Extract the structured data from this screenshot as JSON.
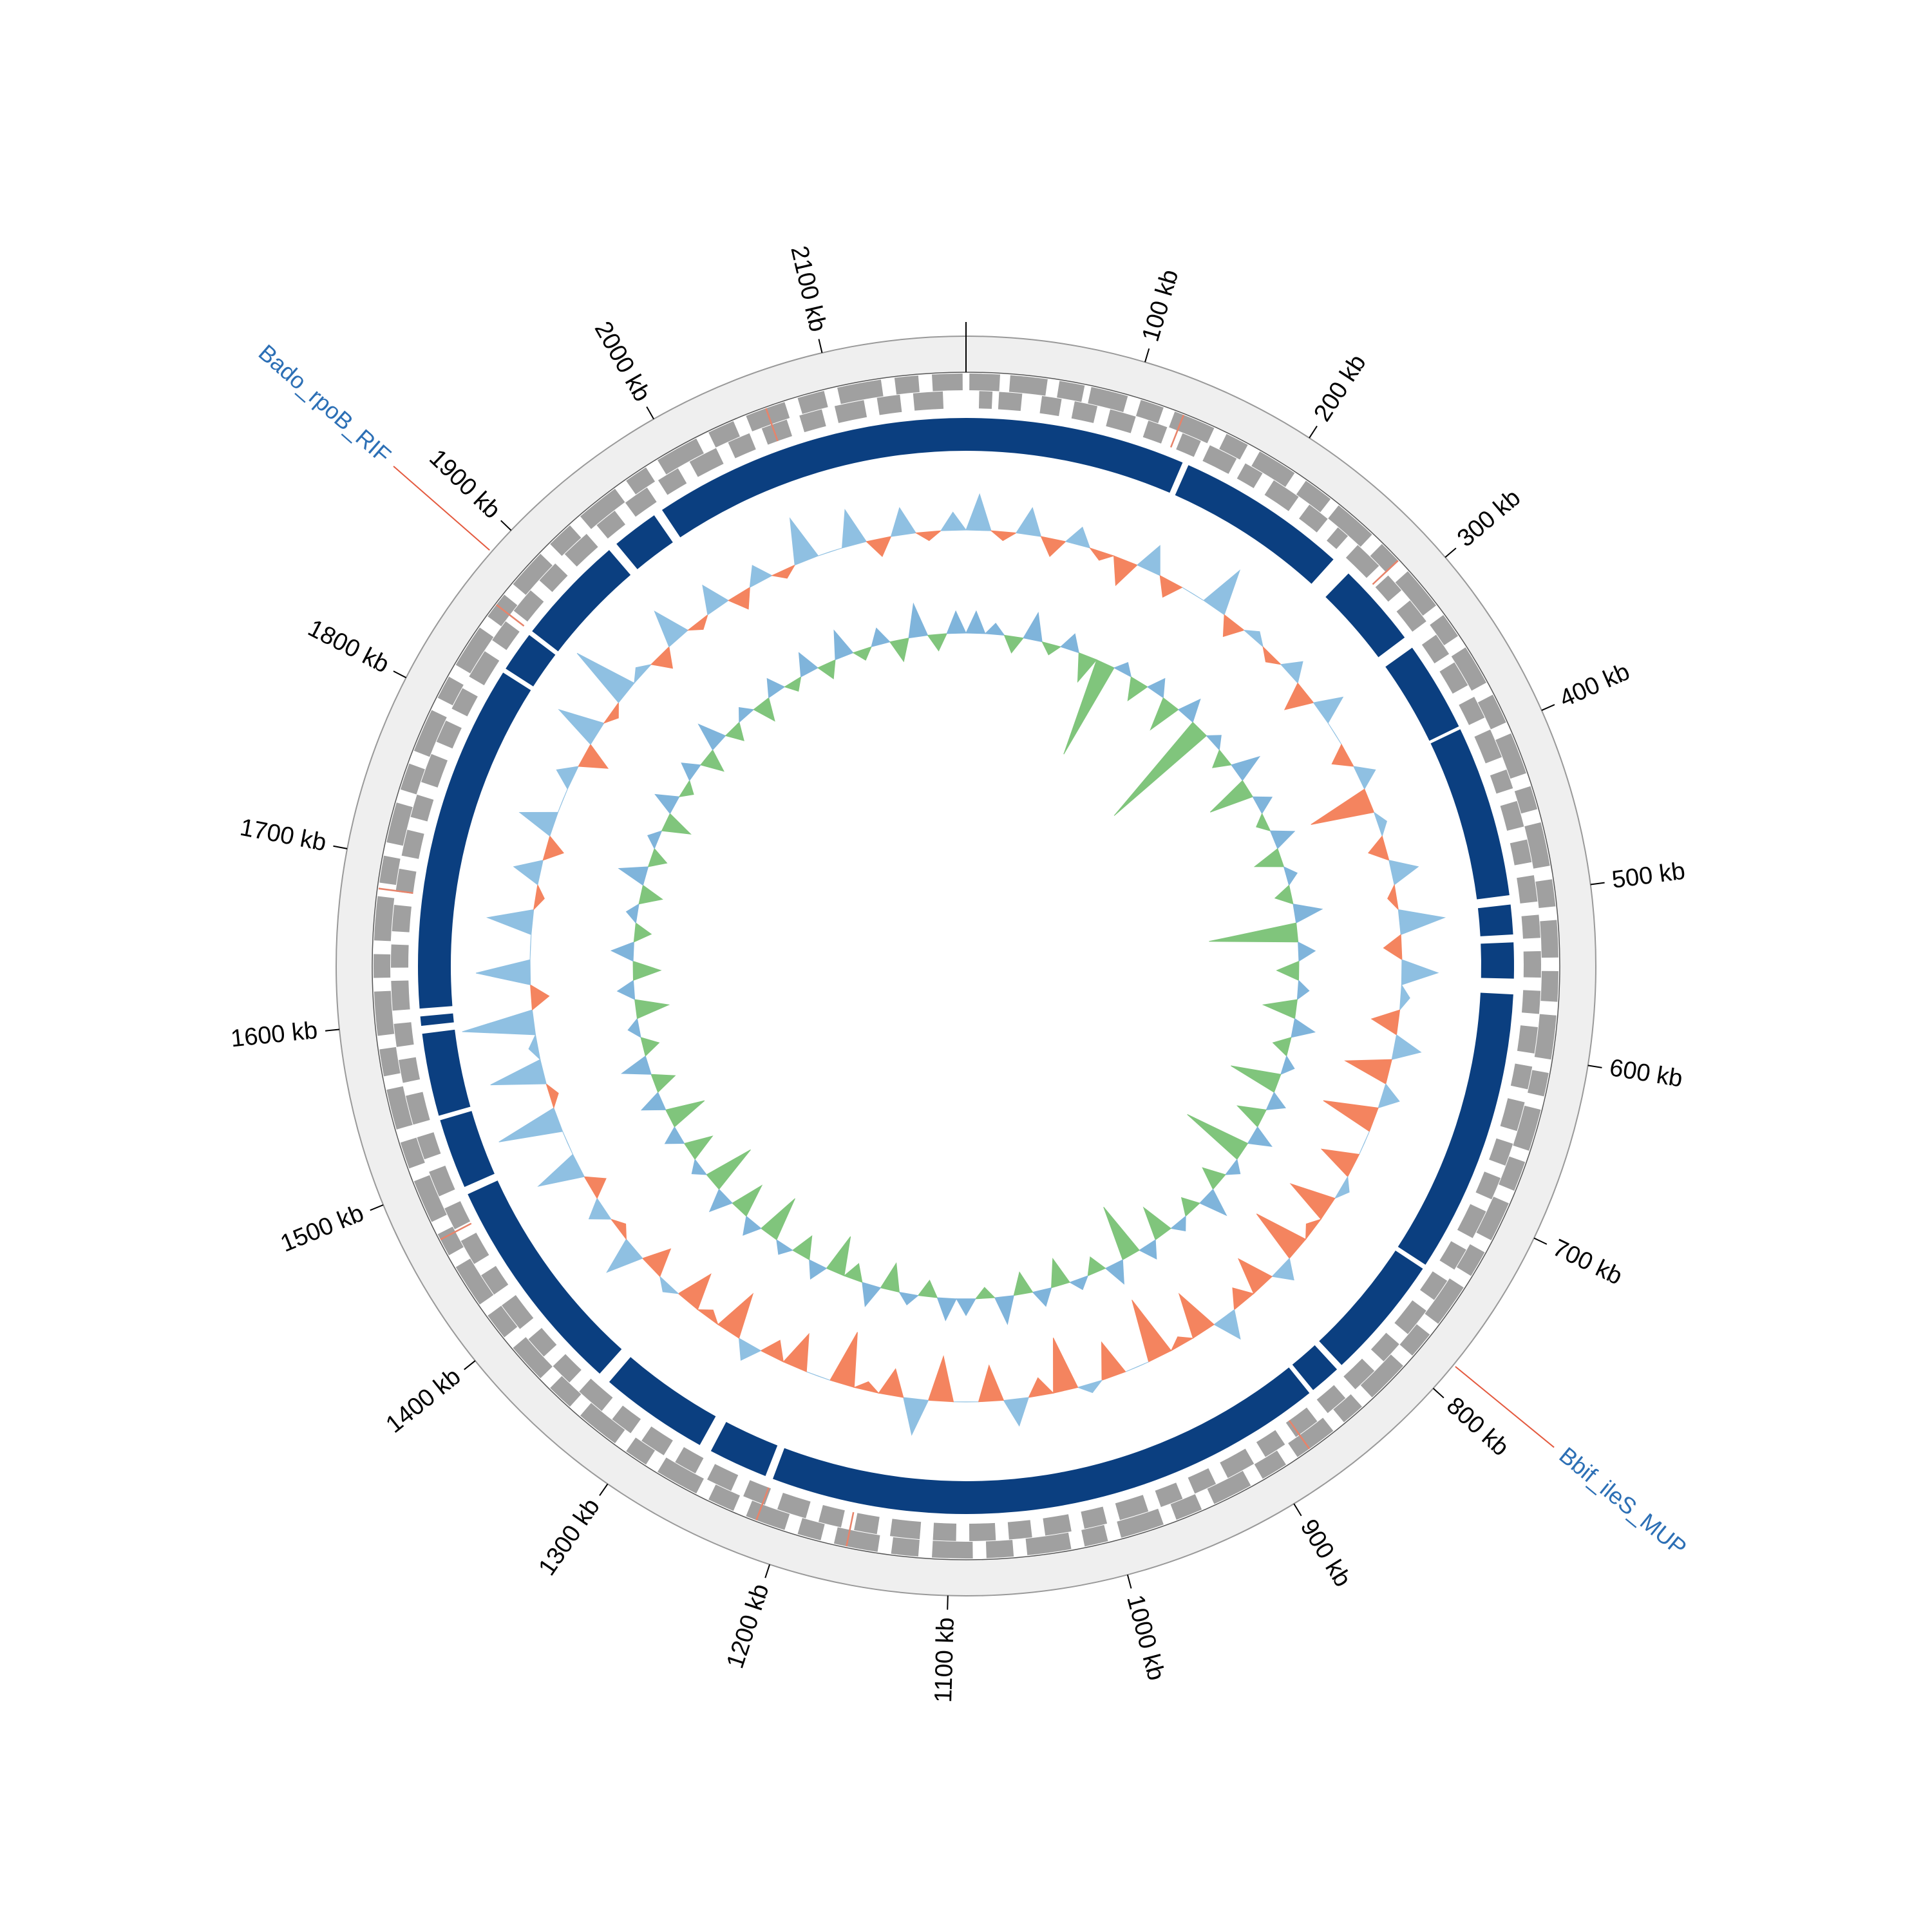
{
  "chart_data": {
    "type": "circular-genome",
    "xlim": [
      0,
      2180
    ],
    "xticks": [
      {
        "value": 0,
        "label": null
      },
      {
        "value": 100,
        "label": "100 kb"
      },
      {
        "value": 200,
        "label": "200 kb"
      },
      {
        "value": 300,
        "label": "300 kb"
      },
      {
        "value": 400,
        "label": "400 kb"
      },
      {
        "value": 500,
        "label": "500 kb"
      },
      {
        "value": 600,
        "label": "600 kb"
      },
      {
        "value": 700,
        "label": "700 kb"
      },
      {
        "value": 800,
        "label": "800 kb"
      },
      {
        "value": 900,
        "label": "900 kb"
      },
      {
        "value": 1000,
        "label": "1000 kb"
      },
      {
        "value": 1100,
        "label": "1100 kb"
      },
      {
        "value": 1200,
        "label": "1200 kb"
      },
      {
        "value": 1300,
        "label": "1300 kb"
      },
      {
        "value": 1400,
        "label": "1400 kb"
      },
      {
        "value": 1500,
        "label": "1500 kb"
      },
      {
        "value": 1600,
        "label": "1600 kb"
      },
      {
        "value": 1700,
        "label": "1700 kb"
      },
      {
        "value": 1800,
        "label": "1800 kb"
      },
      {
        "value": 1900,
        "label": "1900 kb"
      },
      {
        "value": 2000,
        "label": "2000 kb"
      },
      {
        "value": 2100,
        "label": "2100 kb"
      }
    ],
    "annotations": [
      {
        "label": "Bado_rpoB_RIF",
        "position": 1884
      },
      {
        "label": "Bbif_ileS_MUP",
        "position": 783
      }
    ],
    "colors": {
      "ring": "#efefef",
      "gene": "#a0a0a0",
      "rna": "#e8836a",
      "contig": "#0b3f80",
      "gc_positive": "#8fc0e2",
      "gc_negative": "#f4845f",
      "skew_positive": "#7fb4db",
      "skew_negative": "#80c57c",
      "annotation_line": "#e45a3f"
    },
    "contigs": [
      [
        0,
        141
      ],
      [
        145,
        255
      ],
      [
        268,
        322
      ],
      [
        330,
        388
      ],
      [
        390,
        500
      ],
      [
        506,
        525
      ],
      [
        530,
        553
      ],
      [
        563,
        745
      ],
      [
        748,
        828
      ],
      [
        832,
        852
      ],
      [
        855,
        1215
      ],
      [
        1220,
        1258
      ],
      [
        1266,
        1336
      ],
      [
        1344,
        1486
      ],
      [
        1491,
        1536
      ],
      [
        1539,
        1592
      ],
      [
        1597,
        1603
      ],
      [
        1608,
        1831
      ],
      [
        1834,
        1860
      ],
      [
        1863,
        1934
      ],
      [
        1940,
        1970
      ],
      [
        1976,
        2180
      ]
    ],
    "genes_forward": [
      [
        2,
        20
      ],
      [
        26,
        48
      ],
      [
        55,
        70
      ],
      [
        74,
        96
      ],
      [
        104,
        118
      ],
      [
        125,
        150
      ],
      [
        158,
        172
      ],
      [
        180,
        204
      ],
      [
        212,
        230
      ],
      [
        236,
        262
      ],
      [
        270,
        284
      ],
      [
        292,
        318
      ],
      [
        325,
        340
      ],
      [
        348,
        372
      ],
      [
        380,
        398
      ],
      [
        405,
        430
      ],
      [
        438,
        452
      ],
      [
        460,
        486
      ],
      [
        494,
        510
      ],
      [
        518,
        540
      ],
      [
        548,
        566
      ],
      [
        574,
        600
      ],
      [
        608,
        622
      ],
      [
        630,
        655
      ],
      [
        662,
        680
      ],
      [
        688,
        712
      ],
      [
        720,
        736
      ],
      [
        744,
        770
      ],
      [
        778,
        794
      ],
      [
        802,
        828
      ],
      [
        836,
        850
      ],
      [
        858,
        884
      ],
      [
        892,
        908
      ],
      [
        916,
        940
      ],
      [
        948,
        964
      ],
      [
        972,
        998
      ],
      [
        1006,
        1020
      ],
      [
        1028,
        1054
      ],
      [
        1062,
        1078
      ],
      [
        1086,
        1110
      ],
      [
        1118,
        1134
      ],
      [
        1142,
        1168
      ],
      [
        1176,
        1190
      ],
      [
        1198,
        1222
      ],
      [
        1230,
        1246
      ],
      [
        1254,
        1280
      ],
      [
        1288,
        1302
      ],
      [
        1310,
        1336
      ],
      [
        1344,
        1360
      ],
      [
        1368,
        1392
      ],
      [
        1400,
        1416
      ],
      [
        1424,
        1450
      ],
      [
        1458,
        1472
      ],
      [
        1480,
        1506
      ],
      [
        1514,
        1530
      ],
      [
        1538,
        1562
      ],
      [
        1570,
        1586
      ],
      [
        1594,
        1620
      ],
      [
        1628,
        1642
      ],
      [
        1650,
        1676
      ],
      [
        1684,
        1700
      ],
      [
        1708,
        1732
      ],
      [
        1740,
        1756
      ],
      [
        1764,
        1790
      ],
      [
        1798,
        1812
      ],
      [
        1820,
        1846
      ],
      [
        1854,
        1870
      ],
      [
        1878,
        1902
      ],
      [
        1910,
        1926
      ],
      [
        1934,
        1960
      ],
      [
        1968,
        1982
      ],
      [
        1990,
        2016
      ],
      [
        2024,
        2040
      ],
      [
        2048,
        2072
      ],
      [
        2080,
        2096
      ],
      [
        2104,
        2130
      ],
      [
        2138,
        2152
      ],
      [
        2160,
        2178
      ]
    ],
    "genes_reverse": [
      [
        8,
        16
      ],
      [
        20,
        34
      ],
      [
        46,
        58
      ],
      [
        66,
        80
      ],
      [
        88,
        104
      ],
      [
        112,
        124
      ],
      [
        134,
        146
      ],
      [
        152,
        170
      ],
      [
        176,
        188
      ],
      [
        196,
        214
      ],
      [
        222,
        236
      ],
      [
        244,
        252
      ],
      [
        260,
        278
      ],
      [
        286,
        298
      ],
      [
        306,
        322
      ],
      [
        332,
        346
      ],
      [
        352,
        368
      ],
      [
        376,
        390
      ],
      [
        398,
        416
      ],
      [
        424,
        436
      ],
      [
        444,
        460
      ],
      [
        468,
        482
      ],
      [
        490,
        506
      ],
      [
        514,
        528
      ],
      [
        536,
        552
      ],
      [
        560,
        574
      ],
      [
        582,
        598
      ],
      [
        606,
        620
      ],
      [
        628,
        646
      ],
      [
        654,
        668
      ],
      [
        676,
        690
      ],
      [
        698,
        716
      ],
      [
        724,
        738
      ],
      [
        746,
        760
      ],
      [
        768,
        786
      ],
      [
        794,
        808
      ],
      [
        816,
        832
      ],
      [
        840,
        854
      ],
      [
        862,
        878
      ],
      [
        886,
        900
      ],
      [
        908,
        926
      ],
      [
        934,
        948
      ],
      [
        956,
        970
      ],
      [
        978,
        996
      ],
      [
        1004,
        1018
      ],
      [
        1026,
        1042
      ],
      [
        1050,
        1064
      ],
      [
        1072,
        1088
      ],
      [
        1096,
        1110
      ],
      [
        1118,
        1136
      ],
      [
        1144,
        1158
      ],
      [
        1166,
        1180
      ],
      [
        1188,
        1206
      ],
      [
        1214,
        1228
      ],
      [
        1236,
        1252
      ],
      [
        1260,
        1274
      ],
      [
        1282,
        1298
      ],
      [
        1306,
        1320
      ],
      [
        1328,
        1346
      ],
      [
        1354,
        1368
      ],
      [
        1376,
        1390
      ],
      [
        1398,
        1416
      ],
      [
        1424,
        1438
      ],
      [
        1446,
        1462
      ],
      [
        1470,
        1484
      ],
      [
        1492,
        1508
      ],
      [
        1516,
        1530
      ],
      [
        1538,
        1556
      ],
      [
        1564,
        1578
      ],
      [
        1586,
        1600
      ],
      [
        1608,
        1626
      ],
      [
        1634,
        1648
      ],
      [
        1656,
        1672
      ],
      [
        1680,
        1694
      ],
      [
        1702,
        1718
      ],
      [
        1726,
        1740
      ],
      [
        1748,
        1766
      ],
      [
        1774,
        1788
      ],
      [
        1796,
        1810
      ],
      [
        1818,
        1836
      ],
      [
        1844,
        1858
      ],
      [
        1866,
        1882
      ],
      [
        1890,
        1904
      ],
      [
        1912,
        1930
      ],
      [
        1938,
        1952
      ],
      [
        1960,
        1976
      ],
      [
        1984,
        1998
      ],
      [
        2006,
        2024
      ],
      [
        2032,
        2046
      ],
      [
        2054,
        2070
      ],
      [
        2078,
        2092
      ],
      [
        2100,
        2118
      ],
      [
        2126,
        2140
      ],
      [
        2148,
        2166
      ]
    ],
    "rna_genes": [
      [
        130,
        131
      ],
      [
        283,
        284
      ],
      [
        875,
        876
      ],
      [
        1160,
        1161
      ],
      [
        1215,
        1216
      ],
      [
        1468,
        1469
      ],
      [
        1680,
        1681
      ],
      [
        1862,
        1863
      ],
      [
        2060,
        2061
      ]
    ],
    "gc_content": {
      "x": [
        0,
        20,
        40,
        60,
        80,
        100,
        120,
        140,
        160,
        180,
        200,
        220,
        240,
        260,
        280,
        300,
        320,
        340,
        360,
        380,
        400,
        420,
        440,
        460,
        480,
        500,
        520,
        540,
        560,
        580,
        600,
        620,
        640,
        660,
        680,
        700,
        720,
        740,
        760,
        780,
        800,
        820,
        840,
        860,
        880,
        900,
        920,
        940,
        960,
        980,
        1000,
        1020,
        1040,
        1060,
        1080,
        1100,
        1120,
        1140,
        1160,
        1180,
        1200,
        1220,
        1240,
        1260,
        1280,
        1300,
        1320,
        1340,
        1360,
        1380,
        1400,
        1420,
        1440,
        1460,
        1480,
        1500,
        1520,
        1540,
        1560,
        1580,
        1600,
        1620,
        1640,
        1660,
        1680,
        1700,
        1720,
        1740,
        1760,
        1780,
        1800,
        1820,
        1840,
        1860,
        1880,
        1900,
        1920,
        1940,
        1960,
        1980,
        2000,
        2020,
        2040,
        2060,
        2080,
        2100,
        2120,
        2140,
        2160
      ],
      "values": [
        63,
        58,
        62,
        57,
        61,
        58,
        56,
        62,
        57,
        59,
        64,
        57,
        60,
        58,
        61,
        56,
        62,
        59,
        57,
        61,
        52,
        60,
        57,
        62,
        58,
        64,
        57,
        63,
        60,
        56,
        62,
        54,
        61,
        53,
        59,
        55,
        60,
        54,
        58,
        53,
        61,
        55,
        57,
        62,
        54,
        58,
        52,
        59,
        55,
        60,
        53,
        57,
        62,
        55,
        59,
        54,
        63,
        56,
        58,
        53,
        59,
        55,
        57,
        61,
        54,
        58,
        55,
        60,
        56,
        63,
        58,
        61,
        57,
        64,
        59,
        66,
        58,
        65,
        60,
        67,
        57,
        65,
        59,
        64,
        58,
        62,
        57,
        63,
        59,
        61,
        56,
        64,
        58,
        66,
        60,
        57,
        63,
        58,
        62,
        57,
        61,
        58,
        64,
        59,
        63,
        57,
        62,
        58,
        61
      ]
    },
    "gc_skew": {
      "x": [
        0,
        20,
        40,
        60,
        80,
        100,
        120,
        140,
        160,
        180,
        200,
        220,
        240,
        260,
        280,
        300,
        320,
        340,
        360,
        380,
        400,
        420,
        440,
        460,
        480,
        500,
        520,
        540,
        560,
        580,
        600,
        620,
        640,
        660,
        680,
        700,
        720,
        740,
        760,
        780,
        800,
        820,
        840,
        860,
        880,
        900,
        920,
        940,
        960,
        980,
        1000,
        1020,
        1040,
        1060,
        1080,
        1100,
        1120,
        1140,
        1160,
        1180,
        1200,
        1220,
        1240,
        1260,
        1280,
        1300,
        1320,
        1340,
        1360,
        1380,
        1400,
        1420,
        1440,
        1460,
        1480,
        1500,
        1520,
        1540,
        1560,
        1580,
        1600,
        1620,
        1640,
        1660,
        1680,
        1700,
        1720,
        1740,
        1760,
        1780,
        1800,
        1820,
        1840,
        1860,
        1880,
        1900,
        1920,
        1940,
        1960,
        1980,
        2000,
        2020,
        2040,
        2060,
        2080,
        2100,
        2120,
        2140,
        2160
      ],
      "values": [
        0.04,
        0.02,
        -0.03,
        0.05,
        -0.02,
        0.03,
        -0.05,
        -0.18,
        0.02,
        -0.04,
        0.03,
        -0.06,
        0.04,
        -0.22,
        0.02,
        -0.03,
        0.05,
        -0.08,
        0.03,
        -0.02,
        0.04,
        -0.05,
        0.02,
        -0.03,
        0.05,
        -0.16,
        0.03,
        -0.04,
        0.02,
        -0.06,
        0.04,
        -0.03,
        0.02,
        -0.09,
        0.03,
        -0.05,
        0.04,
        -0.12,
        0.02,
        -0.04,
        0.05,
        -0.03,
        0.02,
        -0.06,
        0.03,
        -0.1,
        0.04,
        -0.03,
        0.02,
        -0.05,
        0.03,
        -0.04,
        0.05,
        -0.02,
        0.03,
        0.04,
        -0.03,
        0.02,
        -0.05,
        0.04,
        -0.03,
        -0.07,
        0.03,
        -0.04,
        0.02,
        -0.08,
        0.03,
        -0.06,
        0.04,
        -0.09,
        0.02,
        -0.05,
        0.03,
        -0.07,
        0.04,
        -0.04,
        0.05,
        -0.03,
        0.02,
        -0.06,
        0.03,
        -0.05,
        0.04,
        -0.03,
        0.02,
        -0.04,
        0.05,
        -0.03,
        0.02,
        -0.05,
        0.04,
        -0.02,
        0.03,
        -0.04,
        0.05,
        -0.03,
        0.02,
        -0.04,
        0.03,
        -0.02,
        0.04,
        -0.03,
        0.05,
        -0.02,
        0.03,
        -0.04,
        0.06,
        -0.03,
        0.04
      ]
    }
  }
}
